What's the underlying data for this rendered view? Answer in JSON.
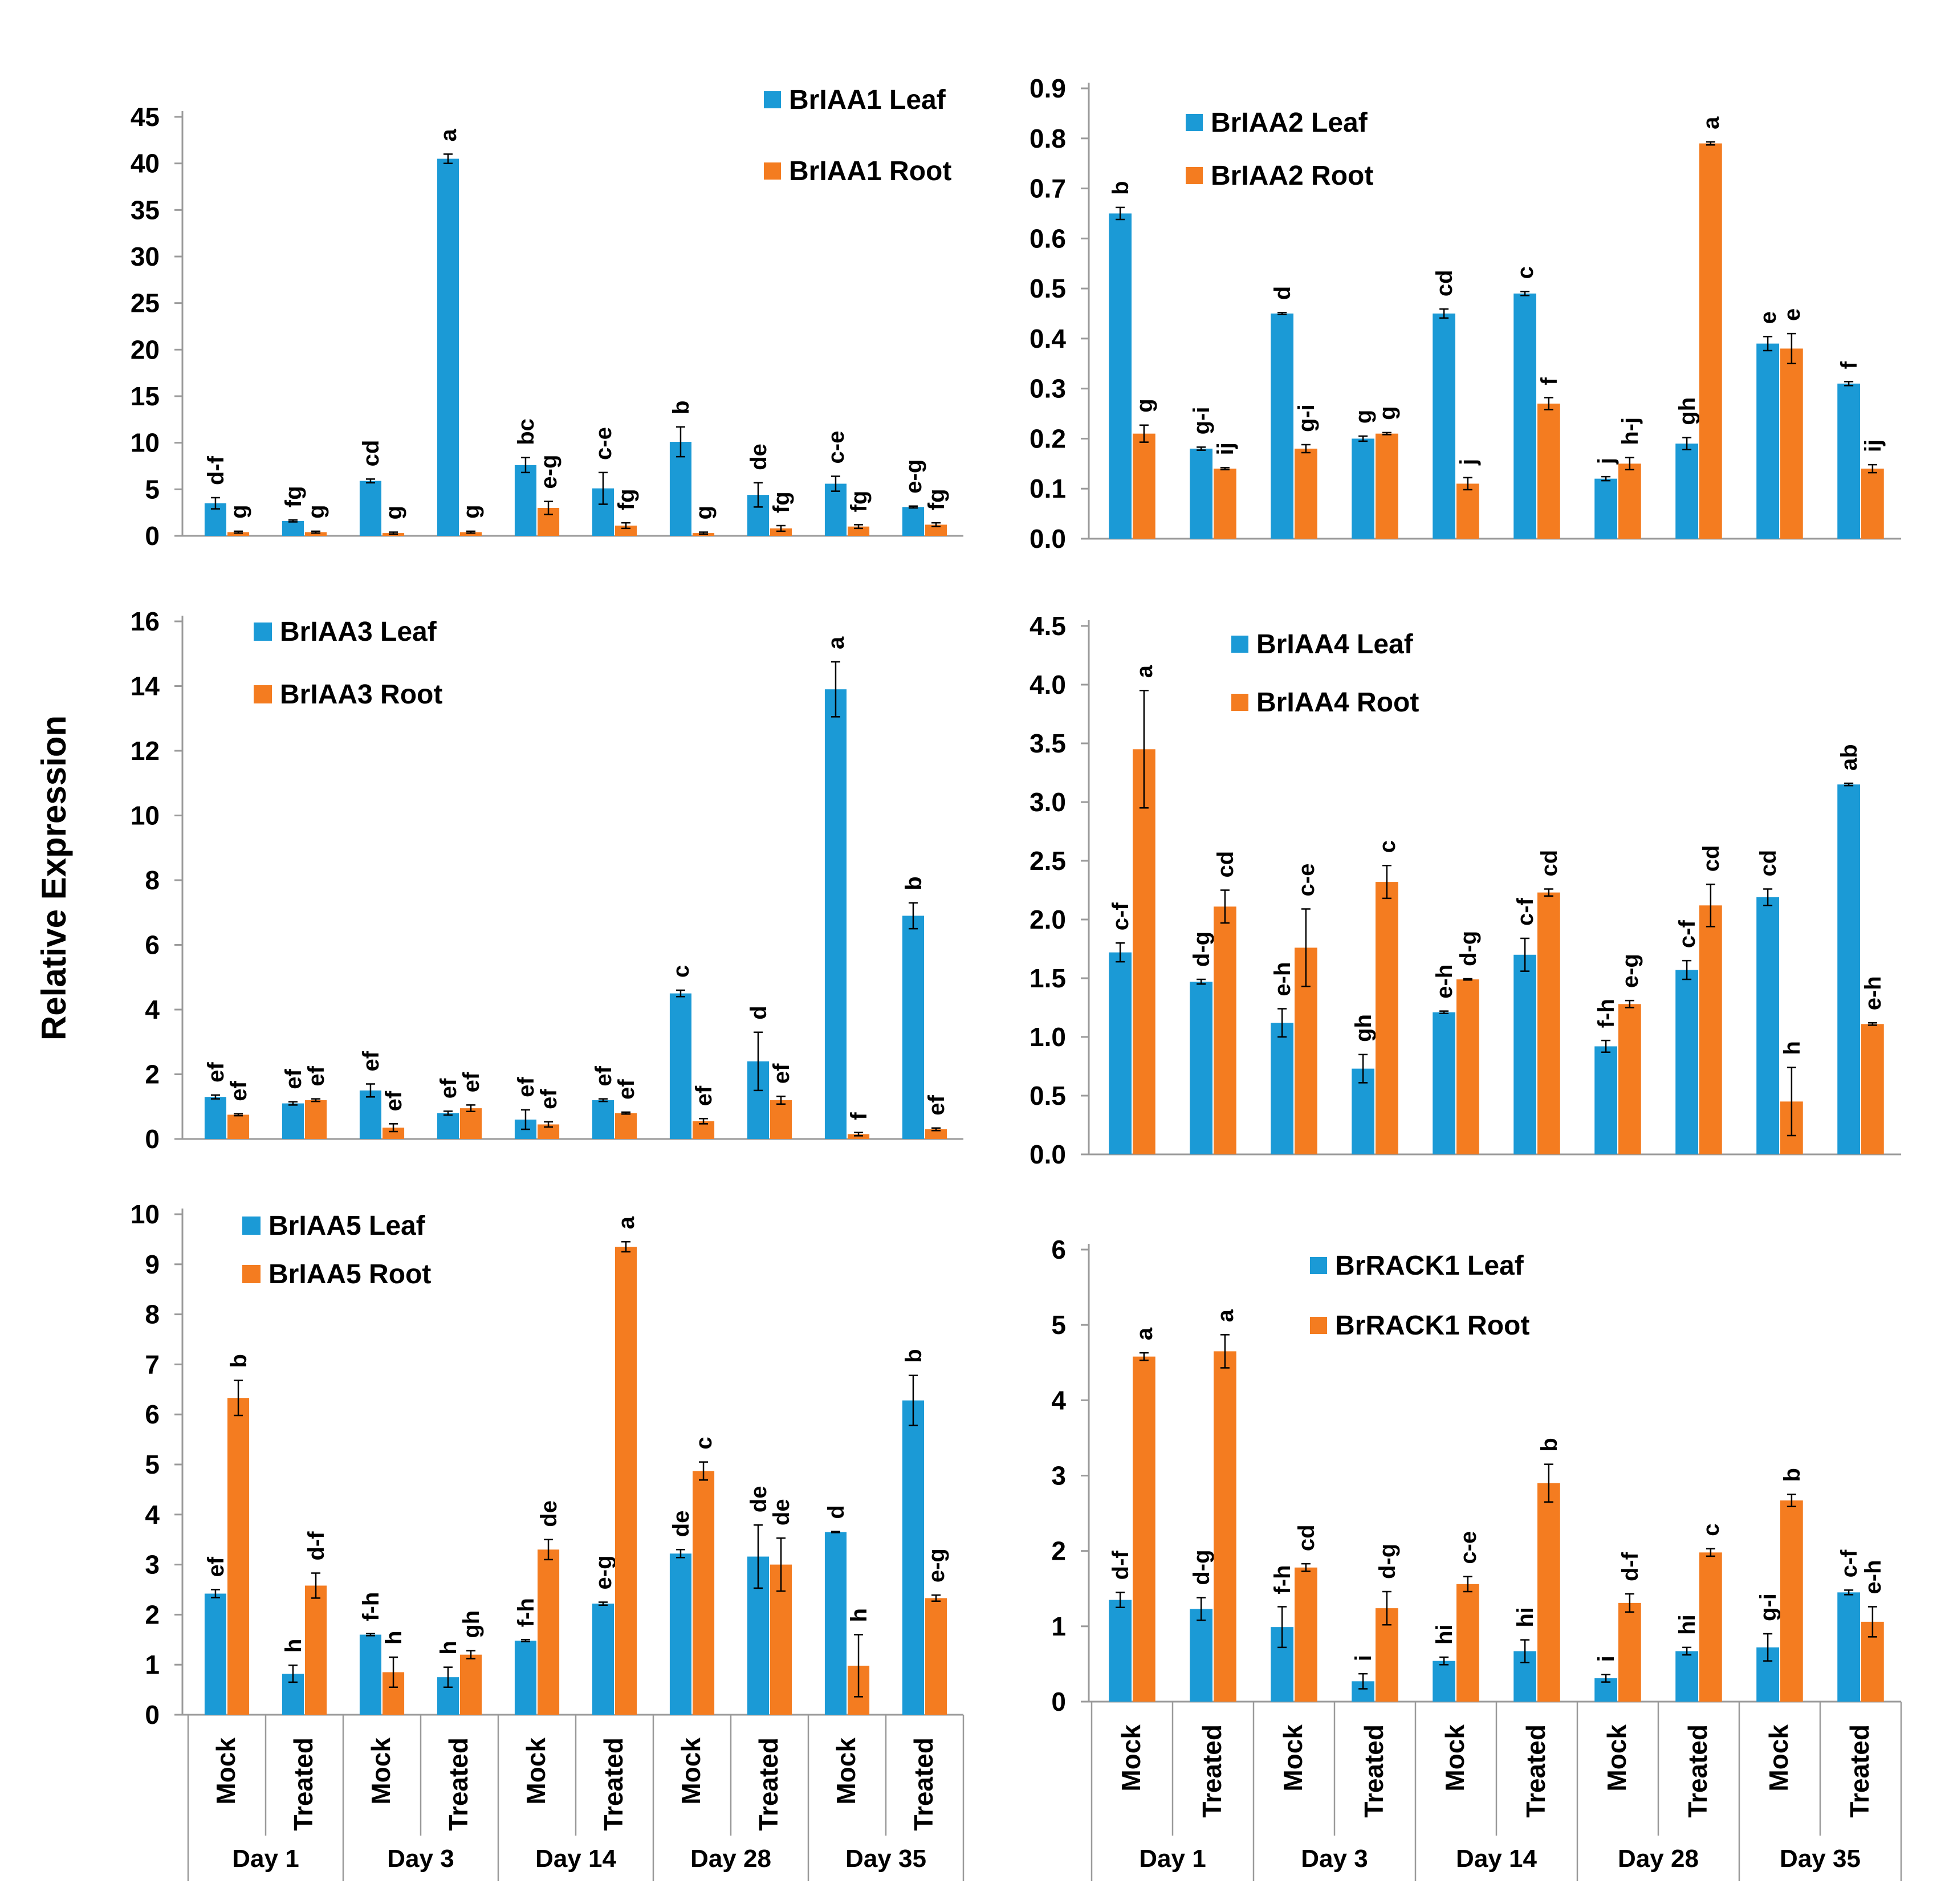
{
  "figure": {
    "ylabel": "Relative Expression",
    "x_categories": [
      "Mock",
      "Treated",
      "Mock",
      "Treated",
      "Mock",
      "Treated",
      "Mock",
      "Treated",
      "Mock",
      "Treated"
    ],
    "x_groups": [
      "Day 1",
      "Day 3",
      "Day 14",
      "Day 28",
      "Day 35"
    ],
    "colors": {
      "leaf": "#1b9ad6",
      "root": "#f47c20",
      "axis": "#9a9a9a",
      "error": "#000000"
    }
  },
  "chart_data": [
    {
      "id": "briaa1",
      "type": "bar",
      "title": "BrIAA1",
      "categories": [
        "Day 1 Mock",
        "Day 1 Treated",
        "Day 3 Mock",
        "Day 3 Treated",
        "Day 14 Mock",
        "Day 14 Treated",
        "Day 28 Mock",
        "Day 28 Treated",
        "Day 35 Mock",
        "Day 35 Treated"
      ],
      "ylim": [
        0,
        45
      ],
      "yticks": [
        "0",
        "5",
        "10",
        "15",
        "20",
        "25",
        "30",
        "35",
        "40",
        "45"
      ],
      "series": [
        {
          "name": "BrIAA1 Leaf",
          "values": [
            3.5,
            1.6,
            5.9,
            40.5,
            7.6,
            5.1,
            10.1,
            4.4,
            5.6,
            3.1
          ],
          "errors": [
            0.6,
            0.1,
            0.2,
            0.5,
            0.8,
            1.7,
            1.6,
            1.3,
            0.8,
            0.1
          ],
          "labels": [
            "d-f",
            "fg",
            "cd",
            "a",
            "bc",
            "c-e",
            "b",
            "de",
            "c-e",
            "e-g"
          ]
        },
        {
          "name": "BrIAA1 Root",
          "values": [
            0.4,
            0.4,
            0.3,
            0.4,
            3.0,
            1.1,
            0.3,
            0.8,
            1.0,
            1.2
          ],
          "errors": [
            0.1,
            0.1,
            0.1,
            0.1,
            0.7,
            0.3,
            0.1,
            0.3,
            0.2,
            0.2
          ],
          "labels": [
            "g",
            "g",
            "g",
            "g",
            "e-g",
            "fg",
            "g",
            "fg",
            "fg",
            "fg"
          ]
        }
      ]
    },
    {
      "id": "briaa2",
      "type": "bar",
      "title": "BrIAA2",
      "categories": [
        "Day 1 Mock",
        "Day 1 Treated",
        "Day 3 Mock",
        "Day 3 Treated",
        "Day 14 Mock",
        "Day 14 Treated",
        "Day 28 Mock",
        "Day 28 Treated",
        "Day 35 Mock",
        "Day 35 Treated"
      ],
      "ylim": [
        0,
        0.9
      ],
      "yticks": [
        "0.0",
        "0.1",
        "0.2",
        "0.3",
        "0.4",
        "0.5",
        "0.6",
        "0.7",
        "0.8",
        "0.9"
      ],
      "series": [
        {
          "name": "BrIAA2 Leaf",
          "values": [
            0.65,
            0.18,
            0.45,
            0.2,
            0.45,
            0.49,
            0.12,
            0.19,
            0.39,
            0.31
          ],
          "errors": [
            0.012,
            0.003,
            0.002,
            0.005,
            0.009,
            0.004,
            0.004,
            0.012,
            0.014,
            0.004
          ],
          "labels": [
            "b",
            "g-i",
            "d",
            "g",
            "cd",
            "c",
            "j",
            "gh",
            "e",
            "f"
          ]
        },
        {
          "name": "BrIAA2 Root",
          "values": [
            0.21,
            0.14,
            0.18,
            0.21,
            0.11,
            0.27,
            0.15,
            0.79,
            0.38,
            0.14
          ],
          "errors": [
            0.017,
            0.002,
            0.008,
            0.002,
            0.012,
            0.012,
            0.012,
            0.003,
            0.03,
            0.008
          ],
          "labels": [
            "g",
            "ij",
            "g-i",
            "g",
            "j",
            "f",
            "h-j",
            "a",
            "e",
            "ij"
          ]
        }
      ]
    },
    {
      "id": "briaa3",
      "type": "bar",
      "title": "BrIAA3",
      "categories": [
        "Day 1 Mock",
        "Day 1 Treated",
        "Day 3 Mock",
        "Day 3 Treated",
        "Day 14 Mock",
        "Day 14 Treated",
        "Day 28 Mock",
        "Day 28 Treated",
        "Day 35 Mock",
        "Day 35 Treated"
      ],
      "ylim": [
        0,
        16
      ],
      "yticks": [
        "0",
        "2",
        "4",
        "6",
        "8",
        "10",
        "12",
        "14",
        "16"
      ],
      "series": [
        {
          "name": "BrIAA3 Leaf",
          "values": [
            1.3,
            1.1,
            1.5,
            0.8,
            0.6,
            1.2,
            4.5,
            2.4,
            13.9,
            6.9
          ],
          "errors": [
            0.06,
            0.05,
            0.2,
            0.06,
            0.3,
            0.04,
            0.1,
            0.9,
            0.85,
            0.4
          ],
          "labels": [
            "ef",
            "ef",
            "ef",
            "ef",
            "ef",
            "ef",
            "c",
            "d",
            "a",
            "b"
          ]
        },
        {
          "name": "BrIAA3 Root",
          "values": [
            0.75,
            1.2,
            0.35,
            0.95,
            0.45,
            0.8,
            0.55,
            1.2,
            0.15,
            0.3
          ],
          "errors": [
            0.03,
            0.04,
            0.12,
            0.1,
            0.08,
            0.03,
            0.08,
            0.12,
            0.05,
            0.04
          ],
          "labels": [
            "ef",
            "ef",
            "ef",
            "ef",
            "ef",
            "ef",
            "ef",
            "ef",
            "f",
            "ef"
          ]
        }
      ]
    },
    {
      "id": "briaa4",
      "type": "bar",
      "title": "BrIAA4",
      "categories": [
        "Day 1 Mock",
        "Day 1 Treated",
        "Day 3 Mock",
        "Day 3 Treated",
        "Day 14 Mock",
        "Day 14 Treated",
        "Day 28 Mock",
        "Day 28 Treated",
        "Day 35 Mock",
        "Day 35 Treated"
      ],
      "ylim": [
        0,
        4.5
      ],
      "yticks": [
        "0.0",
        "0.5",
        "1.0",
        "1.5",
        "2.0",
        "2.5",
        "3.0",
        "3.5",
        "4.0",
        "4.5"
      ],
      "series": [
        {
          "name": "BrIAA4 Leaf",
          "values": [
            1.72,
            1.47,
            1.12,
            0.73,
            1.21,
            1.7,
            0.92,
            1.57,
            2.19,
            3.15
          ],
          "errors": [
            0.08,
            0.02,
            0.12,
            0.12,
            0.01,
            0.14,
            0.05,
            0.08,
            0.07,
            0.01
          ],
          "labels": [
            "c-f",
            "d-g",
            "e-h",
            "gh",
            "e-h",
            "c-f",
            "f-h",
            "c-f",
            "cd",
            "ab"
          ]
        },
        {
          "name": "BrIAA4 Root",
          "values": [
            3.45,
            2.11,
            1.76,
            2.32,
            1.49,
            2.23,
            1.28,
            2.12,
            0.45,
            1.11
          ],
          "errors": [
            0.5,
            0.14,
            0.33,
            0.14,
            0.005,
            0.03,
            0.03,
            0.18,
            0.29,
            0.01
          ],
          "labels": [
            "a",
            "cd",
            "c-e",
            "c",
            "d-g",
            "cd",
            "e-g",
            "cd",
            "h",
            "e-h"
          ]
        }
      ]
    },
    {
      "id": "briaa5",
      "type": "bar",
      "title": "BrIAA5",
      "categories": [
        "Day 1 Mock",
        "Day 1 Treated",
        "Day 3 Mock",
        "Day 3 Treated",
        "Day 14 Mock",
        "Day 14 Treated",
        "Day 28 Mock",
        "Day 28 Treated",
        "Day 35 Mock",
        "Day 35 Treated"
      ],
      "ylim": [
        0,
        10
      ],
      "yticks": [
        "0",
        "1",
        "2",
        "3",
        "4",
        "5",
        "6",
        "7",
        "8",
        "9",
        "10"
      ],
      "series": [
        {
          "name": "BrIAA5 Leaf",
          "values": [
            2.42,
            0.82,
            1.6,
            0.75,
            1.48,
            2.22,
            3.22,
            3.16,
            3.65,
            6.28
          ],
          "errors": [
            0.08,
            0.17,
            0.02,
            0.2,
            0.02,
            0.03,
            0.08,
            0.63,
            0.01,
            0.5
          ],
          "labels": [
            "ef",
            "h",
            "f-h",
            "h",
            "f-h",
            "e-g",
            "de",
            "de",
            "d",
            "b"
          ]
        },
        {
          "name": "BrIAA5 Root",
          "values": [
            6.33,
            2.58,
            0.85,
            1.2,
            3.3,
            9.35,
            4.87,
            3.0,
            0.98,
            2.33
          ],
          "errors": [
            0.35,
            0.25,
            0.3,
            0.08,
            0.2,
            0.1,
            0.18,
            0.53,
            0.62,
            0.06
          ],
          "labels": [
            "b",
            "d-f",
            "h",
            "gh",
            "de",
            "a",
            "c",
            "de",
            "h",
            "e-g"
          ]
        }
      ]
    },
    {
      "id": "brrack1",
      "type": "bar",
      "title": "BrRACK1",
      "categories": [
        "Day 1 Mock",
        "Day 1 Treated",
        "Day 3 Mock",
        "Day 3 Treated",
        "Day 14 Mock",
        "Day 14 Treated",
        "Day 28 Mock",
        "Day 28 Treated",
        "Day 35 Mock",
        "Day 35 Treated"
      ],
      "ylim": [
        0,
        6
      ],
      "yticks": [
        "0",
        "1",
        "2",
        "3",
        "4",
        "5",
        "6"
      ],
      "series": [
        {
          "name": "BrRACK1 Leaf",
          "values": [
            1.35,
            1.23,
            0.99,
            0.27,
            0.54,
            0.67,
            0.31,
            0.67,
            0.72,
            1.45
          ],
          "errors": [
            0.1,
            0.15,
            0.27,
            0.1,
            0.05,
            0.15,
            0.05,
            0.05,
            0.18,
            0.03
          ],
          "labels": [
            "d-f",
            "d-g",
            "f-h",
            "i",
            "hi",
            "hi",
            "i",
            "hi",
            "g-i",
            "c-f"
          ]
        },
        {
          "name": "BrRACK1 Root",
          "values": [
            4.58,
            4.65,
            1.78,
            1.24,
            1.56,
            2.9,
            1.31,
            1.98,
            2.67,
            1.06
          ],
          "errors": [
            0.05,
            0.22,
            0.05,
            0.22,
            0.1,
            0.25,
            0.12,
            0.05,
            0.08,
            0.2
          ],
          "labels": [
            "a",
            "a",
            "cd",
            "d-g",
            "c-e",
            "b",
            "d-f",
            "c",
            "b",
            "e-h"
          ]
        }
      ]
    }
  ]
}
